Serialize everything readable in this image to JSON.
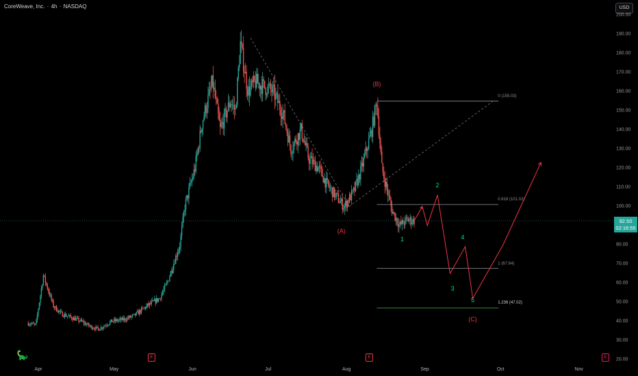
{
  "header": {
    "symbol": "CoreWeave, Inc.",
    "interval": "4h",
    "exchange": "NASDAQ",
    "sep": "·",
    "currency": "USD"
  },
  "price_tag": {
    "price": "92.50",
    "countdown": "02:16:55",
    "color": "#26a69a"
  },
  "colors": {
    "up": "#26a69a",
    "down": "#ef5350",
    "fib_line": "#9598a1",
    "target_line": "#4caf50",
    "wave_red": "#f23645",
    "wave_green": "#00e676",
    "trend": "#787b86"
  },
  "events": [
    {
      "label": "E",
      "name": "earnings-icon-may",
      "color": "red"
    },
    {
      "label": "E",
      "name": "earnings-icon-aug",
      "color": "red"
    },
    {
      "label": "E",
      "name": "earnings-icon-nov",
      "color": "pink"
    }
  ],
  "chart_data": {
    "type": "candlestick",
    "ylim": [
      20,
      200
    ],
    "y_ticks": [
      "200.00",
      "190.00",
      "180.00",
      "170.00",
      "160.00",
      "150.00",
      "140.00",
      "130.00",
      "120.00",
      "110.00",
      "100.00",
      "90.00",
      "80.00",
      "70.00",
      "60.00",
      "50.00",
      "40.00",
      "30.00",
      "20.00"
    ],
    "x_ticks": [
      "Apr",
      "May",
      "Jun",
      "Jul",
      "Aug",
      "Sep",
      "Oct",
      "Nov"
    ],
    "approx_close_path": [
      [
        "2025-03-28",
        39
      ],
      [
        "2025-03-31",
        38
      ],
      [
        "2025-04-03",
        64
      ],
      [
        "2025-04-07",
        48
      ],
      [
        "2025-04-10",
        44
      ],
      [
        "2025-04-14",
        42
      ],
      [
        "2025-04-18",
        40
      ],
      [
        "2025-04-22",
        37
      ],
      [
        "2025-04-25",
        36
      ],
      [
        "2025-04-30",
        40
      ],
      [
        "2025-05-05",
        41
      ],
      [
        "2025-05-09",
        43
      ],
      [
        "2025-05-14",
        48
      ],
      [
        "2025-05-19",
        52
      ],
      [
        "2025-05-22",
        60
      ],
      [
        "2025-05-27",
        80
      ],
      [
        "2025-05-29",
        100
      ],
      [
        "2025-06-02",
        120
      ],
      [
        "2025-06-05",
        145
      ],
      [
        "2025-06-09",
        165
      ],
      [
        "2025-06-12",
        140
      ],
      [
        "2025-06-16",
        155
      ],
      [
        "2025-06-18",
        150
      ],
      [
        "2025-06-20",
        185
      ],
      [
        "2025-06-23",
        160
      ],
      [
        "2025-06-26",
        165
      ],
      [
        "2025-06-30",
        162
      ],
      [
        "2025-07-03",
        160
      ],
      [
        "2025-07-07",
        148
      ],
      [
        "2025-07-10",
        130
      ],
      [
        "2025-07-14",
        140
      ],
      [
        "2025-07-17",
        125
      ],
      [
        "2025-07-21",
        120
      ],
      [
        "2025-07-24",
        112
      ],
      [
        "2025-07-28",
        105
      ],
      [
        "2025-07-31",
        100
      ],
      [
        "2025-08-04",
        108
      ],
      [
        "2025-08-07",
        120
      ],
      [
        "2025-08-11",
        140
      ],
      [
        "2025-08-13",
        155
      ],
      [
        "2025-08-15",
        120
      ],
      [
        "2025-08-19",
        98
      ],
      [
        "2025-08-22",
        90
      ],
      [
        "2025-08-25",
        93
      ],
      [
        "2025-08-28",
        92.5
      ]
    ],
    "fib_levels": [
      {
        "label": "0 (155.03)",
        "value": 155.03
      },
      {
        "label": "0.618 (101.02)",
        "value": 101.02
      },
      {
        "label": "1 (67.64)",
        "value": 67.64
      },
      {
        "label": "1.236 (47.02)",
        "value": 47.02
      }
    ],
    "wave_labels": [
      {
        "text": "(B)",
        "color": "red",
        "date": "2025-08-13",
        "price": 164
      },
      {
        "text": "(A)",
        "color": "red",
        "date": "2025-07-30",
        "price": 87
      },
      {
        "text": "(C)",
        "color": "red",
        "date": "2025-09-20",
        "price": 41
      },
      {
        "text": "1",
        "color": "green",
        "date": "2025-08-23",
        "price": 83
      },
      {
        "text": "2",
        "color": "green",
        "date": "2025-09-06",
        "price": 111
      },
      {
        "text": "3",
        "color": "green",
        "date": "2025-09-12",
        "price": 57
      },
      {
        "text": "4",
        "color": "green",
        "date": "2025-09-16",
        "price": 84
      },
      {
        "text": "5",
        "color": "green",
        "date": "2025-09-20",
        "price": 51
      }
    ],
    "projection_path": [
      [
        "2025-08-28",
        93
      ],
      [
        "2025-08-31",
        100
      ],
      [
        "2025-09-02",
        90
      ],
      [
        "2025-09-06",
        106
      ],
      [
        "2025-09-11",
        65
      ],
      [
        "2025-09-17",
        79
      ],
      [
        "2025-09-20",
        52
      ],
      [
        "2025-10-02",
        80
      ],
      [
        "2025-10-17",
        123
      ]
    ],
    "trend_lines": [
      {
        "from": [
          "2025-06-24",
          188
        ],
        "to": [
          "2025-08-02",
          100
        ]
      },
      {
        "from": [
          "2025-08-02",
          100
        ],
        "to": [
          "2025-09-28",
          155
        ]
      }
    ]
  }
}
